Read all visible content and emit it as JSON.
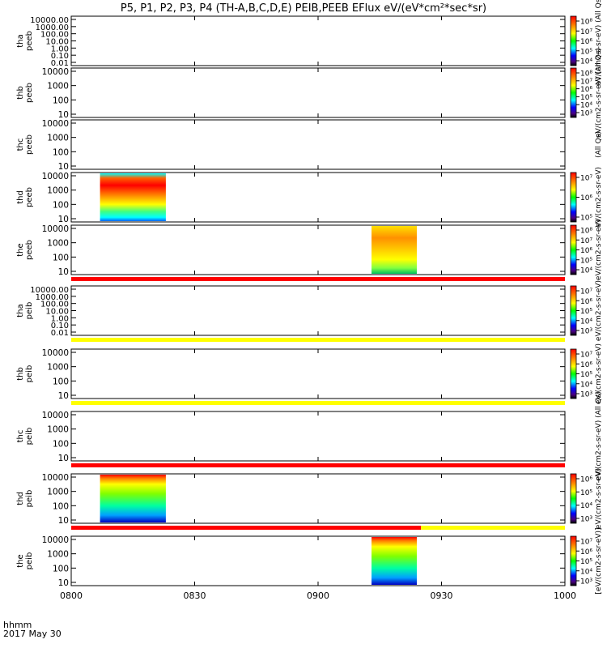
{
  "title": "P5, P1, P2, P3, P4 (TH-A,B,C,D,E) PEIB,PEEB EFlux eV/(eV*cm²*sec*sr)",
  "time_axis": {
    "ticks": [
      "0800",
      "0830",
      "0900",
      "0930",
      "1000"
    ],
    "corner_label": "hhmm",
    "date_label": "2017 May 30"
  },
  "chart_data": [
    {
      "type": "heatmap",
      "ylabel": [
        "tha",
        "peeb"
      ],
      "yticks": [
        "10000.00",
        "1000.00",
        "100.00",
        "10.00",
        "1.00",
        "0.10",
        "0.01"
      ],
      "xlim": [
        "0800",
        "1000"
      ],
      "data_blocks": [],
      "colorbar": {
        "ticks": [
          "10⁸",
          "10⁷",
          "10⁶",
          "10⁵",
          "10⁴"
        ],
        "label": "eV/(cm2-s-sr-eV) (All Qs)"
      }
    },
    {
      "type": "heatmap",
      "ylabel": [
        "thb",
        "peeb"
      ],
      "yticks": [
        "10000",
        "1000",
        "100",
        "10"
      ],
      "xlim": [
        "0800",
        "1000"
      ],
      "data_blocks": [],
      "colorbar": {
        "ticks": [
          "10⁸",
          "10⁷",
          "10⁶",
          "10⁵",
          "10⁴",
          "10³"
        ],
        "label": "eV/(cm2-s-sr-eV) (All Qs)"
      }
    },
    {
      "type": "heatmap",
      "ylabel": [
        "thc",
        "peeb"
      ],
      "yticks": [
        "10000",
        "1000",
        "100",
        "10"
      ],
      "xlim": [
        "0800",
        "1000"
      ],
      "data_blocks": [],
      "colorbar": null,
      "side_label": "(All Qs)"
    },
    {
      "type": "heatmap",
      "ylabel": [
        "thd",
        "peeb"
      ],
      "yticks": [
        "10000",
        "1000",
        "100",
        "10"
      ],
      "xlim": [
        "0800",
        "1000"
      ],
      "data_blocks": [
        {
          "start": "0807",
          "end": "0823",
          "palette": "high"
        }
      ],
      "colorbar": {
        "ticks": [
          "10⁷",
          "10⁶",
          "10⁵"
        ],
        "label": "eV/(cm2-s-sr-eV)"
      }
    },
    {
      "type": "heatmap",
      "ylabel": [
        "the",
        "peeb"
      ],
      "yticks": [
        "10000",
        "1000",
        "100",
        "10"
      ],
      "xlim": [
        "0800",
        "1000"
      ],
      "data_blocks": [
        {
          "start": "0913",
          "end": "0924",
          "palette": "mid"
        }
      ],
      "colorbar": {
        "ticks": [
          "10⁸",
          "10⁷",
          "10⁶",
          "10⁵",
          "10⁴"
        ],
        "label": "eV/(cm2-s-sr-eV)"
      },
      "flag_bar": [
        {
          "start": "0800",
          "end": "1000",
          "color": "#ff0000"
        }
      ]
    },
    {
      "type": "heatmap",
      "ylabel": [
        "tha",
        "peib"
      ],
      "yticks": [
        "10000.00",
        "1000.00",
        "100.00",
        "10.00",
        "1.00",
        "0.10",
        "0.01"
      ],
      "xlim": [
        "0800",
        "1000"
      ],
      "data_blocks": [],
      "colorbar": {
        "ticks": [
          "10⁷",
          "10⁶",
          "10⁵",
          "10⁴",
          "10³"
        ],
        "label": "eV/(cm2-s-sr-eV)"
      },
      "flag_bar": [
        {
          "start": "0800",
          "end": "1000",
          "color": "#ffff00"
        }
      ]
    },
    {
      "type": "heatmap",
      "ylabel": [
        "thb",
        "peib"
      ],
      "yticks": [
        "10000",
        "1000",
        "100",
        "10"
      ],
      "xlim": [
        "0800",
        "1000"
      ],
      "data_blocks": [],
      "colorbar": {
        "ticks": [
          "10⁷",
          "10⁶",
          "10⁵",
          "10⁴",
          "10³"
        ],
        "label": "eV/(cm2-s-sr-eV)"
      },
      "flag_bar": [
        {
          "start": "0800",
          "end": "1000",
          "color": "#ffff00"
        }
      ]
    },
    {
      "type": "heatmap",
      "ylabel": [
        "thc",
        "peib"
      ],
      "yticks": [
        "10000",
        "1000",
        "100",
        "10"
      ],
      "xlim": [
        "0800",
        "1000"
      ],
      "data_blocks": [],
      "colorbar": null,
      "side_label": "eV/(cm2-s-sr-eV) (All Qs)",
      "flag_bar": [
        {
          "start": "0800",
          "end": "1000",
          "color": "#ff0000"
        }
      ]
    },
    {
      "type": "heatmap",
      "ylabel": [
        "thd",
        "peib"
      ],
      "yticks": [
        "10000",
        "1000",
        "100",
        "10"
      ],
      "xlim": [
        "0800",
        "1000"
      ],
      "data_blocks": [
        {
          "start": "0807",
          "end": "0823",
          "palette": "low"
        }
      ],
      "colorbar": {
        "ticks": [
          "10⁶",
          "10⁵",
          "10⁴",
          "10³"
        ],
        "label": "eV/(cm2-s-sr-eV)"
      },
      "flag_bar": [
        {
          "start": "0800",
          "end": "0925",
          "color": "#ff0000"
        },
        {
          "start": "0925",
          "end": "1000",
          "color": "#ffff00"
        }
      ]
    },
    {
      "type": "heatmap",
      "ylabel": [
        "the",
        "peib"
      ],
      "yticks": [
        "10000",
        "1000",
        "100",
        "10"
      ],
      "xlim": [
        "0800",
        "1000"
      ],
      "data_blocks": [
        {
          "start": "0913",
          "end": "0924",
          "palette": "low"
        }
      ],
      "colorbar": {
        "ticks": [
          "10⁷",
          "10⁶",
          "10⁵",
          "10⁴",
          "10³"
        ],
        "label": "[eV/(cm2-s-sr-eV)]"
      }
    }
  ],
  "colors": {
    "frame": "#000000",
    "red_flag": "#ff0000",
    "yellow_flag": "#ffff00"
  }
}
